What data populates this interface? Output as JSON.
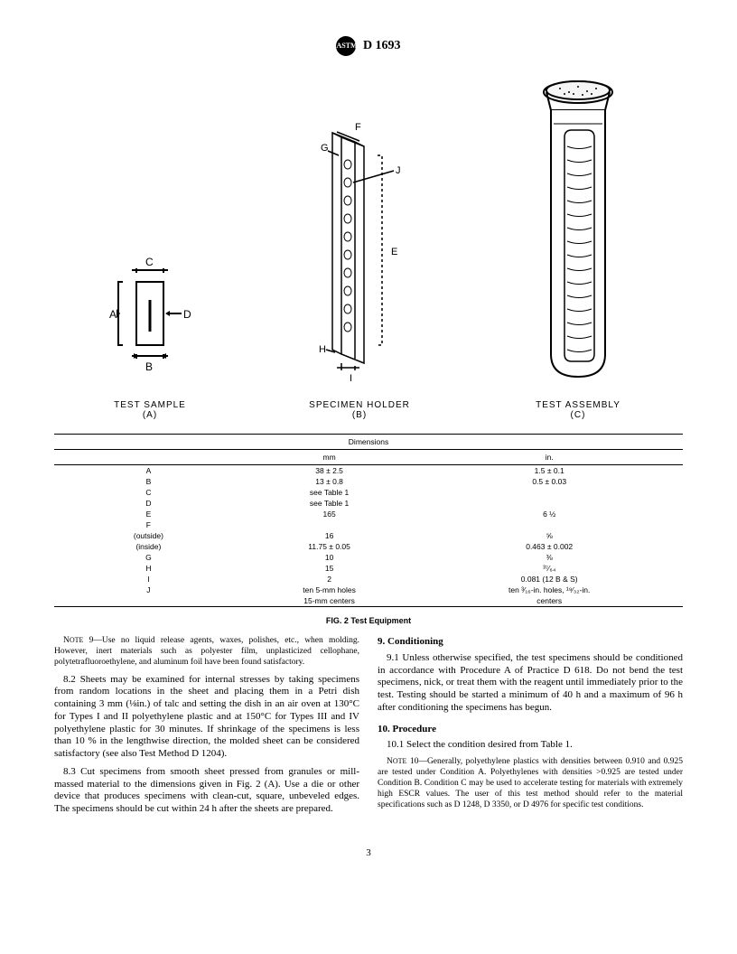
{
  "header": {
    "standard": "D 1693",
    "logo": "ASTM"
  },
  "figures": {
    "a": {
      "label": "TEST SAMPLE",
      "letter": "(A)"
    },
    "b": {
      "label": "SPECIMEN HOLDER",
      "letter": "(B)"
    },
    "c": {
      "label": "TEST ASSEMBLY",
      "letter": "(C)"
    }
  },
  "table": {
    "title": "Dimensions",
    "col1": "mm",
    "col2": "in.",
    "rows": [
      {
        "k": "A",
        "mm": "38 ± 2.5",
        "in": "1.5 ± 0.1"
      },
      {
        "k": "B",
        "mm": "13 ± 0.8",
        "in": "0.5 ± 0.03"
      },
      {
        "k": "C",
        "mm": "see Table 1",
        "in": ""
      },
      {
        "k": "D",
        "mm": "see Table 1",
        "in": ""
      },
      {
        "k": "E",
        "mm": "165",
        "in": "6 ½"
      },
      {
        "k": "F",
        "mm": "",
        "in": ""
      },
      {
        "k": "(outside)",
        "mm": "16",
        "in": "⅝"
      },
      {
        "k": "(inside)",
        "mm": "11.75 ± 0.05",
        "in": "0.463 ± 0.002"
      },
      {
        "k": "G",
        "mm": "10",
        "in": "⅜"
      },
      {
        "k": "H",
        "mm": "15",
        "in": "³⁷⁄₆₄"
      },
      {
        "k": "I",
        "mm": "2",
        "in": "0.081 (12 B & S)"
      },
      {
        "k": "J",
        "mm": "ten 5-mm holes",
        "in": "ten ³⁄₁₆-in. holes, ¹⁹⁄₃₂-in."
      },
      {
        "k": "",
        "mm": "15-mm centers",
        "in": "centers"
      }
    ],
    "caption": "FIG. 2 Test Equipment"
  },
  "body": {
    "note9": "NOTE 9—Use no liquid release agents, waxes, polishes, etc., when molding. However, inert materials such as polyester film, unplasticized cellophane, polytetrafluoroethylene, and aluminum foil have been found satisfactory.",
    "p82": "8.2 Sheets may be examined for internal stresses by taking specimens from random locations in the sheet and placing them in a Petri dish containing 3 mm (⅛in.) of talc and setting the dish in an air oven at 130°C for Types I and II polyethylene plastic and at 150°C for Types III and IV polyethylene plastic for 30 minutes. If shrinkage of the specimens is less than 10 % in the lengthwise direction, the molded sheet can be considered satisfactory (see also Test Method D 1204).",
    "p83": "8.3 Cut specimens from smooth sheet pressed from granules or mill-massed material to the dimensions given in Fig. 2 (A). Use a die or other device that produces specimens with clean-cut, square, unbeveled edges. The specimens should be cut within 24 h after the sheets are prepared.",
    "h9": "9. Conditioning",
    "p91": "9.1 Unless otherwise specified, the test specimens should be conditioned in accordance with Procedure A of Practice D 618. Do not bend the test specimens, nick, or treat them with the reagent until immediately prior to the test. Testing should be started a minimum of 40 h and a maximum of 96 h after conditioning the specimens has begun.",
    "h10": "10. Procedure",
    "p101": "10.1 Select the condition desired from Table 1.",
    "note10": "NOTE 10—Generally, polyethylene plastics with densities between 0.910 and 0.925 are tested under Condition A. Polyethylenes with densities >0.925 are tested under Condition B. Condition C may be used to accelerate testing for materials with extremely high ESCR values. The user of this test method should refer to the material specifications such as D 1248, D 3350, or D 4976 for specific test conditions."
  },
  "page": "3"
}
